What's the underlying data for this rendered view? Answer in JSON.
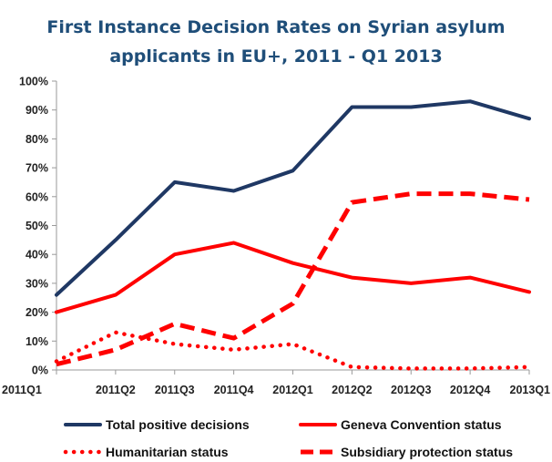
{
  "chart_data": {
    "type": "line",
    "title_line1": "First Instance Decision Rates on Syrian asylum",
    "title_line2": "applicants in EU+, 2011 - Q1 2013",
    "title": "First Instance Decision Rates on Syrian asylum applicants in EU+, 2011 - Q1 2013",
    "categories": [
      "2011Q1",
      "2011Q2",
      "2011Q3",
      "2011Q4",
      "2012Q1",
      "2012Q2",
      "2012Q3",
      "2012Q4",
      "2013Q1"
    ],
    "y_ticks": [
      "0%",
      "10%",
      "20%",
      "30%",
      "40%",
      "50%",
      "60%",
      "70%",
      "80%",
      "90%",
      "100%"
    ],
    "ylim": [
      0,
      100
    ],
    "grid": false,
    "legend_position": "bottom",
    "series": [
      {
        "name": "Total positive decisions",
        "color": "#1f3864",
        "style": "solid",
        "values": [
          26,
          45,
          65,
          62,
          69,
          91,
          91,
          93,
          87
        ]
      },
      {
        "name": "Geneva Convention status",
        "color": "#ff0000",
        "style": "solid",
        "values": [
          20,
          26,
          40,
          44,
          37,
          32,
          30,
          32,
          27
        ]
      },
      {
        "name": "Humanitarian status",
        "color": "#ff0000",
        "style": "dotted",
        "values": [
          3,
          13,
          9,
          7,
          9,
          1,
          0.5,
          0.5,
          1
        ]
      },
      {
        "name": "Subsidiary protection status",
        "color": "#ff0000",
        "style": "dashed",
        "values": [
          2,
          7,
          16,
          11,
          23,
          58,
          61,
          61,
          59
        ]
      }
    ]
  }
}
